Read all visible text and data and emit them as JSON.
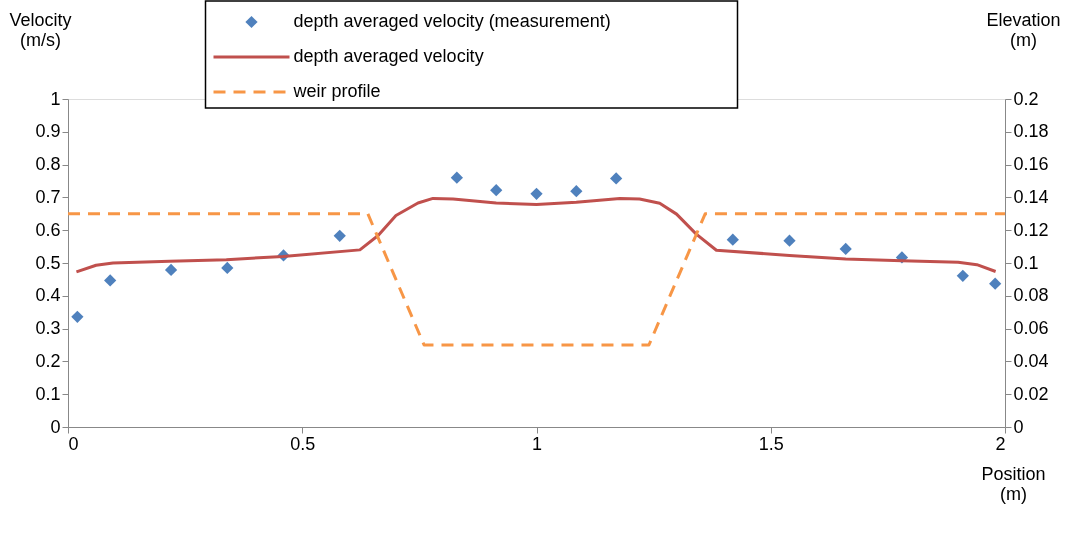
{
  "chart_data": {
    "type": "line",
    "xlabel": "Position\n(m)",
    "ylabel": "Velocity\n(m/s)",
    "y2label": "Elevation\n(m)",
    "xlim": [
      0,
      2
    ],
    "xticks": [
      0,
      0.5,
      1,
      1.5,
      2
    ],
    "ylim": [
      0,
      1
    ],
    "yticks": [
      0,
      0.1,
      0.2,
      0.3,
      0.4,
      0.5,
      0.6,
      0.7,
      0.8,
      0.9,
      1
    ],
    "y2lim": [
      0,
      0.2
    ],
    "y2ticks": [
      0,
      0.02,
      0.04,
      0.06,
      0.08,
      0.1,
      0.12,
      0.14,
      0.16,
      0.18,
      0.2
    ],
    "grid": false,
    "legend": "top",
    "series": [
      {
        "name": "depth averaged velocity (measurement)",
        "type": "scatter",
        "marker": "diamond",
        "color": "#4f81bd",
        "x": [
          0.02,
          0.09,
          0.22,
          0.34,
          0.46,
          0.58,
          0.83,
          0.914,
          1.0,
          1.085,
          1.17,
          1.419,
          1.54,
          1.66,
          1.78,
          1.91,
          1.979
        ],
        "values": [
          0.336,
          0.447,
          0.479,
          0.485,
          0.523,
          0.583,
          0.76,
          0.722,
          0.711,
          0.719,
          0.758,
          0.571,
          0.568,
          0.543,
          0.517,
          0.461,
          0.437
        ]
      },
      {
        "name": "depth averaged velocity",
        "line_style": "solid",
        "color": "#c0504d",
        "x": [
          0.018,
          0.06,
          0.096,
          0.217,
          0.338,
          0.459,
          0.623,
          0.662,
          0.7,
          0.747,
          0.779,
          0.822,
          0.914,
          1.0,
          1.085,
          1.178,
          1.22,
          1.263,
          1.299,
          1.341,
          1.384,
          1.54,
          1.66,
          1.78,
          1.9,
          1.94,
          1.98
        ],
        "values": [
          0.473,
          0.493,
          0.5,
          0.505,
          0.51,
          0.52,
          0.54,
          0.584,
          0.645,
          0.683,
          0.697,
          0.695,
          0.683,
          0.678,
          0.685,
          0.697,
          0.695,
          0.682,
          0.649,
          0.588,
          0.539,
          0.523,
          0.512,
          0.507,
          0.502,
          0.495,
          0.474
        ]
      },
      {
        "name": "weir profile",
        "line_style": "dashed",
        "axis": "y2",
        "color": "#f79646",
        "x": [
          0,
          0.64,
          0.76,
          1.24,
          1.36,
          2
        ],
        "values": [
          0.13,
          0.13,
          0.05,
          0.05,
          0.13,
          0.13
        ]
      }
    ]
  }
}
